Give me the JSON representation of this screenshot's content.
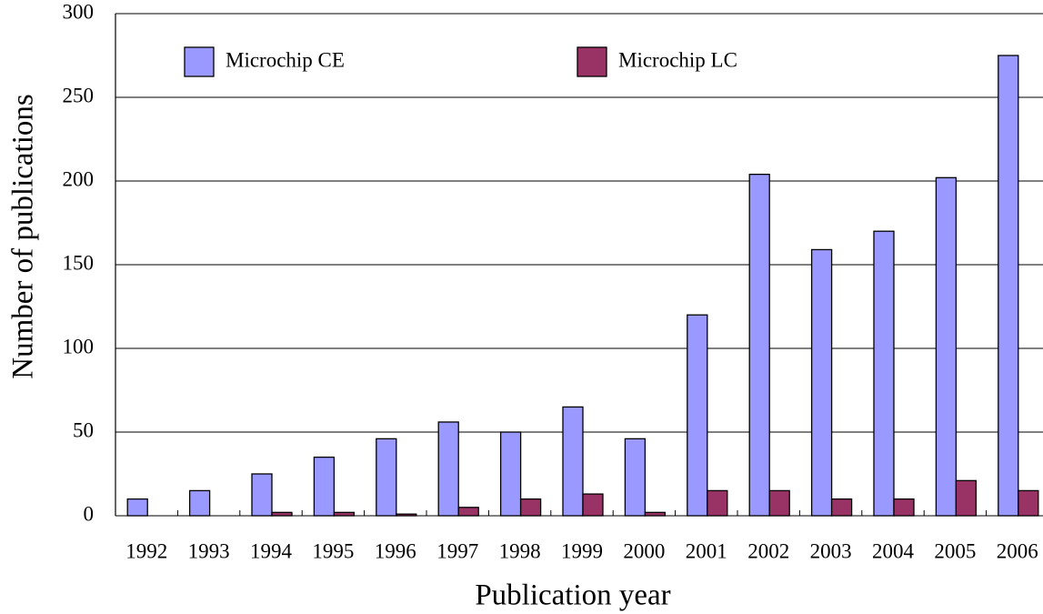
{
  "chart_data": {
    "type": "bar",
    "x_label": "Publication year",
    "y_label": "Number of publications",
    "categories": [
      "1992",
      "1993",
      "1994",
      "1995",
      "1996",
      "1997",
      "1998",
      "1999",
      "2000",
      "2001",
      "2002",
      "2003",
      "2004",
      "2005",
      "2006"
    ],
    "series": [
      {
        "name": "Microchip CE",
        "color": "#9999ff",
        "values": [
          10,
          15,
          25,
          35,
          46,
          56,
          50,
          65,
          46,
          120,
          204,
          159,
          170,
          202,
          275
        ]
      },
      {
        "name": "Microchip LC",
        "color": "#993366",
        "values": [
          0,
          0,
          2,
          2,
          1,
          5,
          10,
          13,
          2,
          15,
          15,
          10,
          10,
          21,
          15
        ]
      }
    ],
    "ylim": [
      0,
      300
    ],
    "yticks": [
      0,
      50,
      100,
      150,
      200,
      250,
      300
    ],
    "grid": true
  }
}
